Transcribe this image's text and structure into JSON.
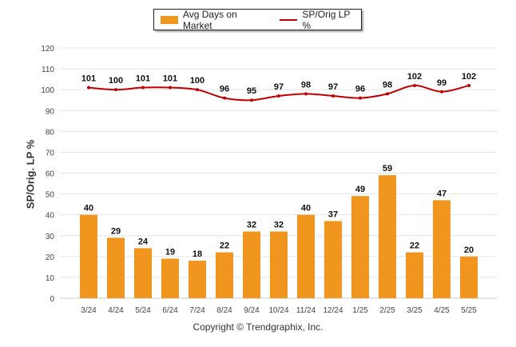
{
  "chart_data": {
    "type": "bar+line",
    "categories": [
      "3/24",
      "4/24",
      "5/24",
      "6/24",
      "7/24",
      "8/24",
      "9/24",
      "10/24",
      "11/24",
      "12/24",
      "1/25",
      "2/25",
      "3/25",
      "4/25",
      "5/25"
    ],
    "series": [
      {
        "name": "Avg Days on Market",
        "type": "bar",
        "color": "#f0961f",
        "values": [
          40,
          29,
          24,
          19,
          18,
          22,
          32,
          32,
          40,
          37,
          49,
          59,
          22,
          47,
          20
        ]
      },
      {
        "name": "SP/Orig LP %",
        "type": "line",
        "color": "#c00000",
        "values": [
          101,
          100,
          101,
          101,
          100,
          96,
          95,
          97,
          98,
          97,
          96,
          98,
          102,
          99,
          102
        ]
      }
    ],
    "ylabel": "SP/Orig. LP %",
    "ylim": [
      0,
      120
    ],
    "yticks": [
      0,
      10,
      20,
      30,
      40,
      50,
      60,
      70,
      80,
      90,
      100,
      110,
      120
    ],
    "grid": true,
    "legend_position": "top-center"
  },
  "copyright": "Copyright © Trendgraphix, Inc."
}
